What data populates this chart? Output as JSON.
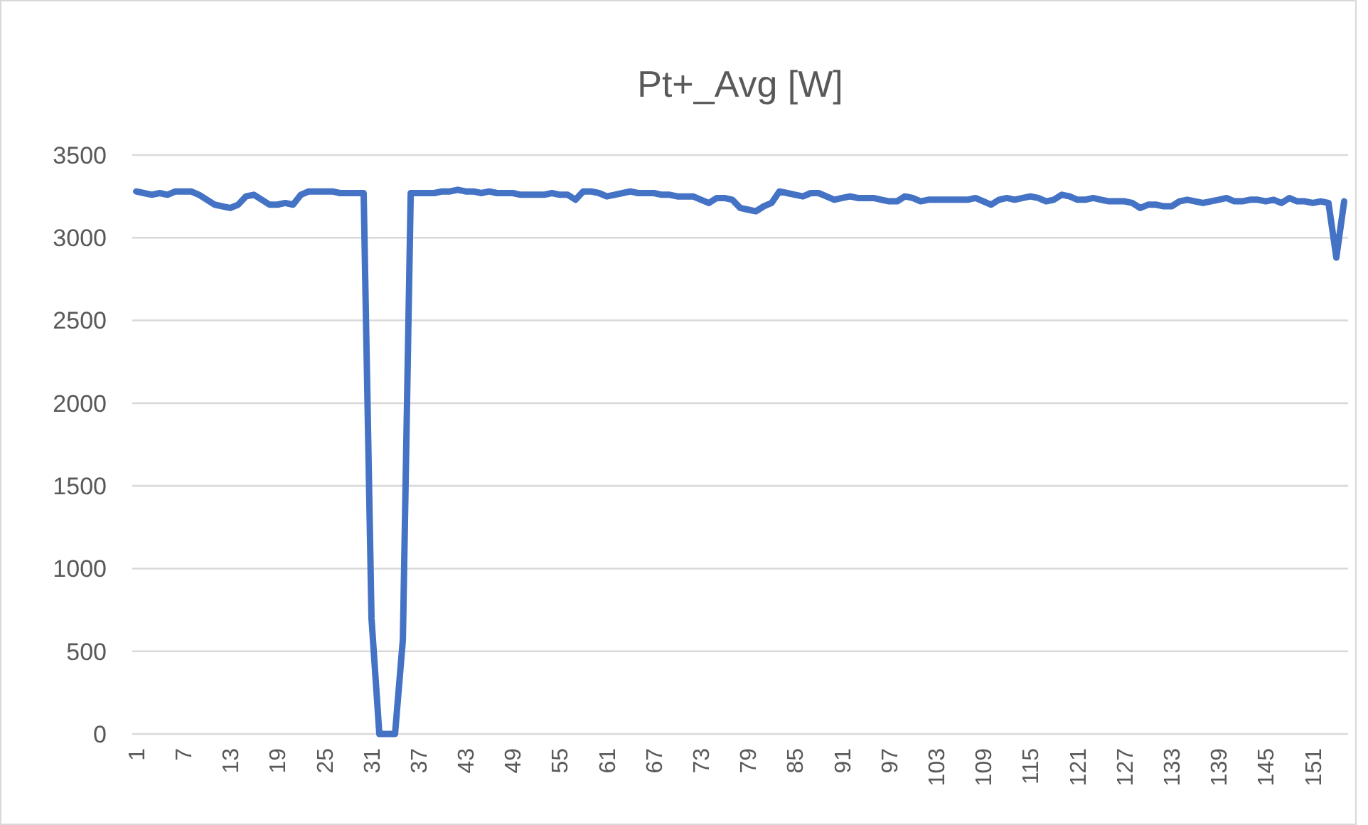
{
  "chart_data": {
    "type": "line",
    "title": "Pt+_Avg [W]",
    "categories": [
      "1",
      null,
      null,
      null,
      null,
      null,
      "7",
      null,
      null,
      null,
      null,
      null,
      "13",
      null,
      null,
      null,
      null,
      null,
      "19",
      null,
      null,
      null,
      null,
      null,
      "25",
      null,
      null,
      null,
      null,
      null,
      "31",
      null,
      null,
      null,
      null,
      null,
      "37",
      null,
      null,
      null,
      null,
      null,
      "43",
      null,
      null,
      null,
      null,
      null,
      "49",
      null,
      null,
      null,
      null,
      null,
      "55",
      null,
      null,
      null,
      null,
      null,
      "61",
      null,
      null,
      null,
      null,
      null,
      "67",
      null,
      null,
      null,
      null,
      null,
      "73",
      null,
      null,
      null,
      null,
      null,
      "79",
      null,
      null,
      null,
      null,
      null,
      "85",
      null,
      null,
      null,
      null,
      null,
      "91",
      null,
      null,
      null,
      null,
      null,
      "97",
      null,
      null,
      null,
      null,
      null,
      "103",
      null,
      null,
      null,
      null,
      null,
      "109",
      null,
      null,
      null,
      null,
      null,
      "115",
      null,
      null,
      null,
      null,
      null,
      "121",
      null,
      null,
      null,
      null,
      null,
      "127",
      null,
      null,
      null,
      null,
      null,
      "133",
      null,
      null,
      null,
      null,
      null,
      "139",
      null,
      null,
      null,
      null,
      null,
      "145",
      null,
      null,
      null,
      null,
      null,
      "151",
      null,
      null,
      null,
      null
    ],
    "series": [
      {
        "color": "#4472c4",
        "values": [
          3280,
          3270,
          3260,
          3270,
          3260,
          3280,
          3280,
          3280,
          3260,
          3230,
          3200,
          3190,
          3180,
          3200,
          3250,
          3260,
          3230,
          3200,
          3200,
          3210,
          3200,
          3260,
          3280,
          3280,
          3280,
          3280,
          3270,
          3270,
          3270,
          3270,
          700,
          0,
          0,
          0,
          570,
          3270,
          3270,
          3270,
          3270,
          3280,
          3280,
          3290,
          3280,
          3280,
          3270,
          3280,
          3270,
          3270,
          3270,
          3260,
          3260,
          3260,
          3260,
          3270,
          3260,
          3260,
          3230,
          3280,
          3280,
          3270,
          3250,
          3260,
          3270,
          3280,
          3270,
          3270,
          3270,
          3260,
          3260,
          3250,
          3250,
          3250,
          3230,
          3210,
          3240,
          3240,
          3230,
          3180,
          3170,
          3160,
          3190,
          3210,
          3280,
          3270,
          3260,
          3250,
          3270,
          3270,
          3250,
          3230,
          3240,
          3250,
          3240,
          3240,
          3240,
          3230,
          3220,
          3220,
          3250,
          3240,
          3220,
          3230,
          3230,
          3230,
          3230,
          3230,
          3230,
          3240,
          3220,
          3200,
          3230,
          3240,
          3230,
          3240,
          3250,
          3240,
          3220,
          3230,
          3260,
          3250,
          3230,
          3230,
          3240,
          3230,
          3220,
          3220,
          3220,
          3210,
          3180,
          3200,
          3200,
          3190,
          3190,
          3220,
          3230,
          3220,
          3210,
          3220,
          3230,
          3240,
          3220,
          3220,
          3230,
          3230,
          3220,
          3230,
          3210,
          3240,
          3220,
          3220,
          3210,
          3220,
          3210,
          2880,
          3220
        ]
      }
    ],
    "ylim": [
      0,
      3500
    ],
    "yticks": [
      0,
      500,
      1000,
      1500,
      2000,
      2500,
      3000,
      3500
    ],
    "grid": "y"
  }
}
